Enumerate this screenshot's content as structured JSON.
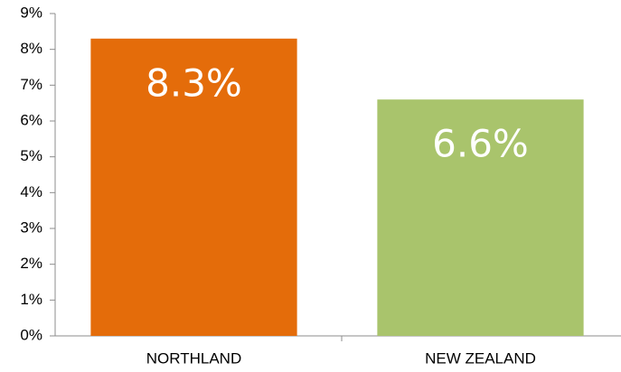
{
  "chart_data": {
    "type": "bar",
    "categories": [
      "NORTHLAND",
      "NEW ZEALAND"
    ],
    "values": [
      8.3,
      6.6
    ],
    "value_labels": [
      "8.3%",
      "6.6%"
    ],
    "colors": [
      "#e46c0a",
      "#a9c46c"
    ],
    "ylim": [
      0,
      9
    ],
    "yticks": [
      {
        "value": 0,
        "label": "0%"
      },
      {
        "value": 1,
        "label": "1%"
      },
      {
        "value": 2,
        "label": "2%"
      },
      {
        "value": 3,
        "label": "3%"
      },
      {
        "value": 4,
        "label": "4%"
      },
      {
        "value": 5,
        "label": "5%"
      },
      {
        "value": 6,
        "label": "6%"
      },
      {
        "value": 7,
        "label": "7%"
      },
      {
        "value": 8,
        "label": "8%"
      },
      {
        "value": 9,
        "label": "9%"
      }
    ],
    "grid": false
  }
}
